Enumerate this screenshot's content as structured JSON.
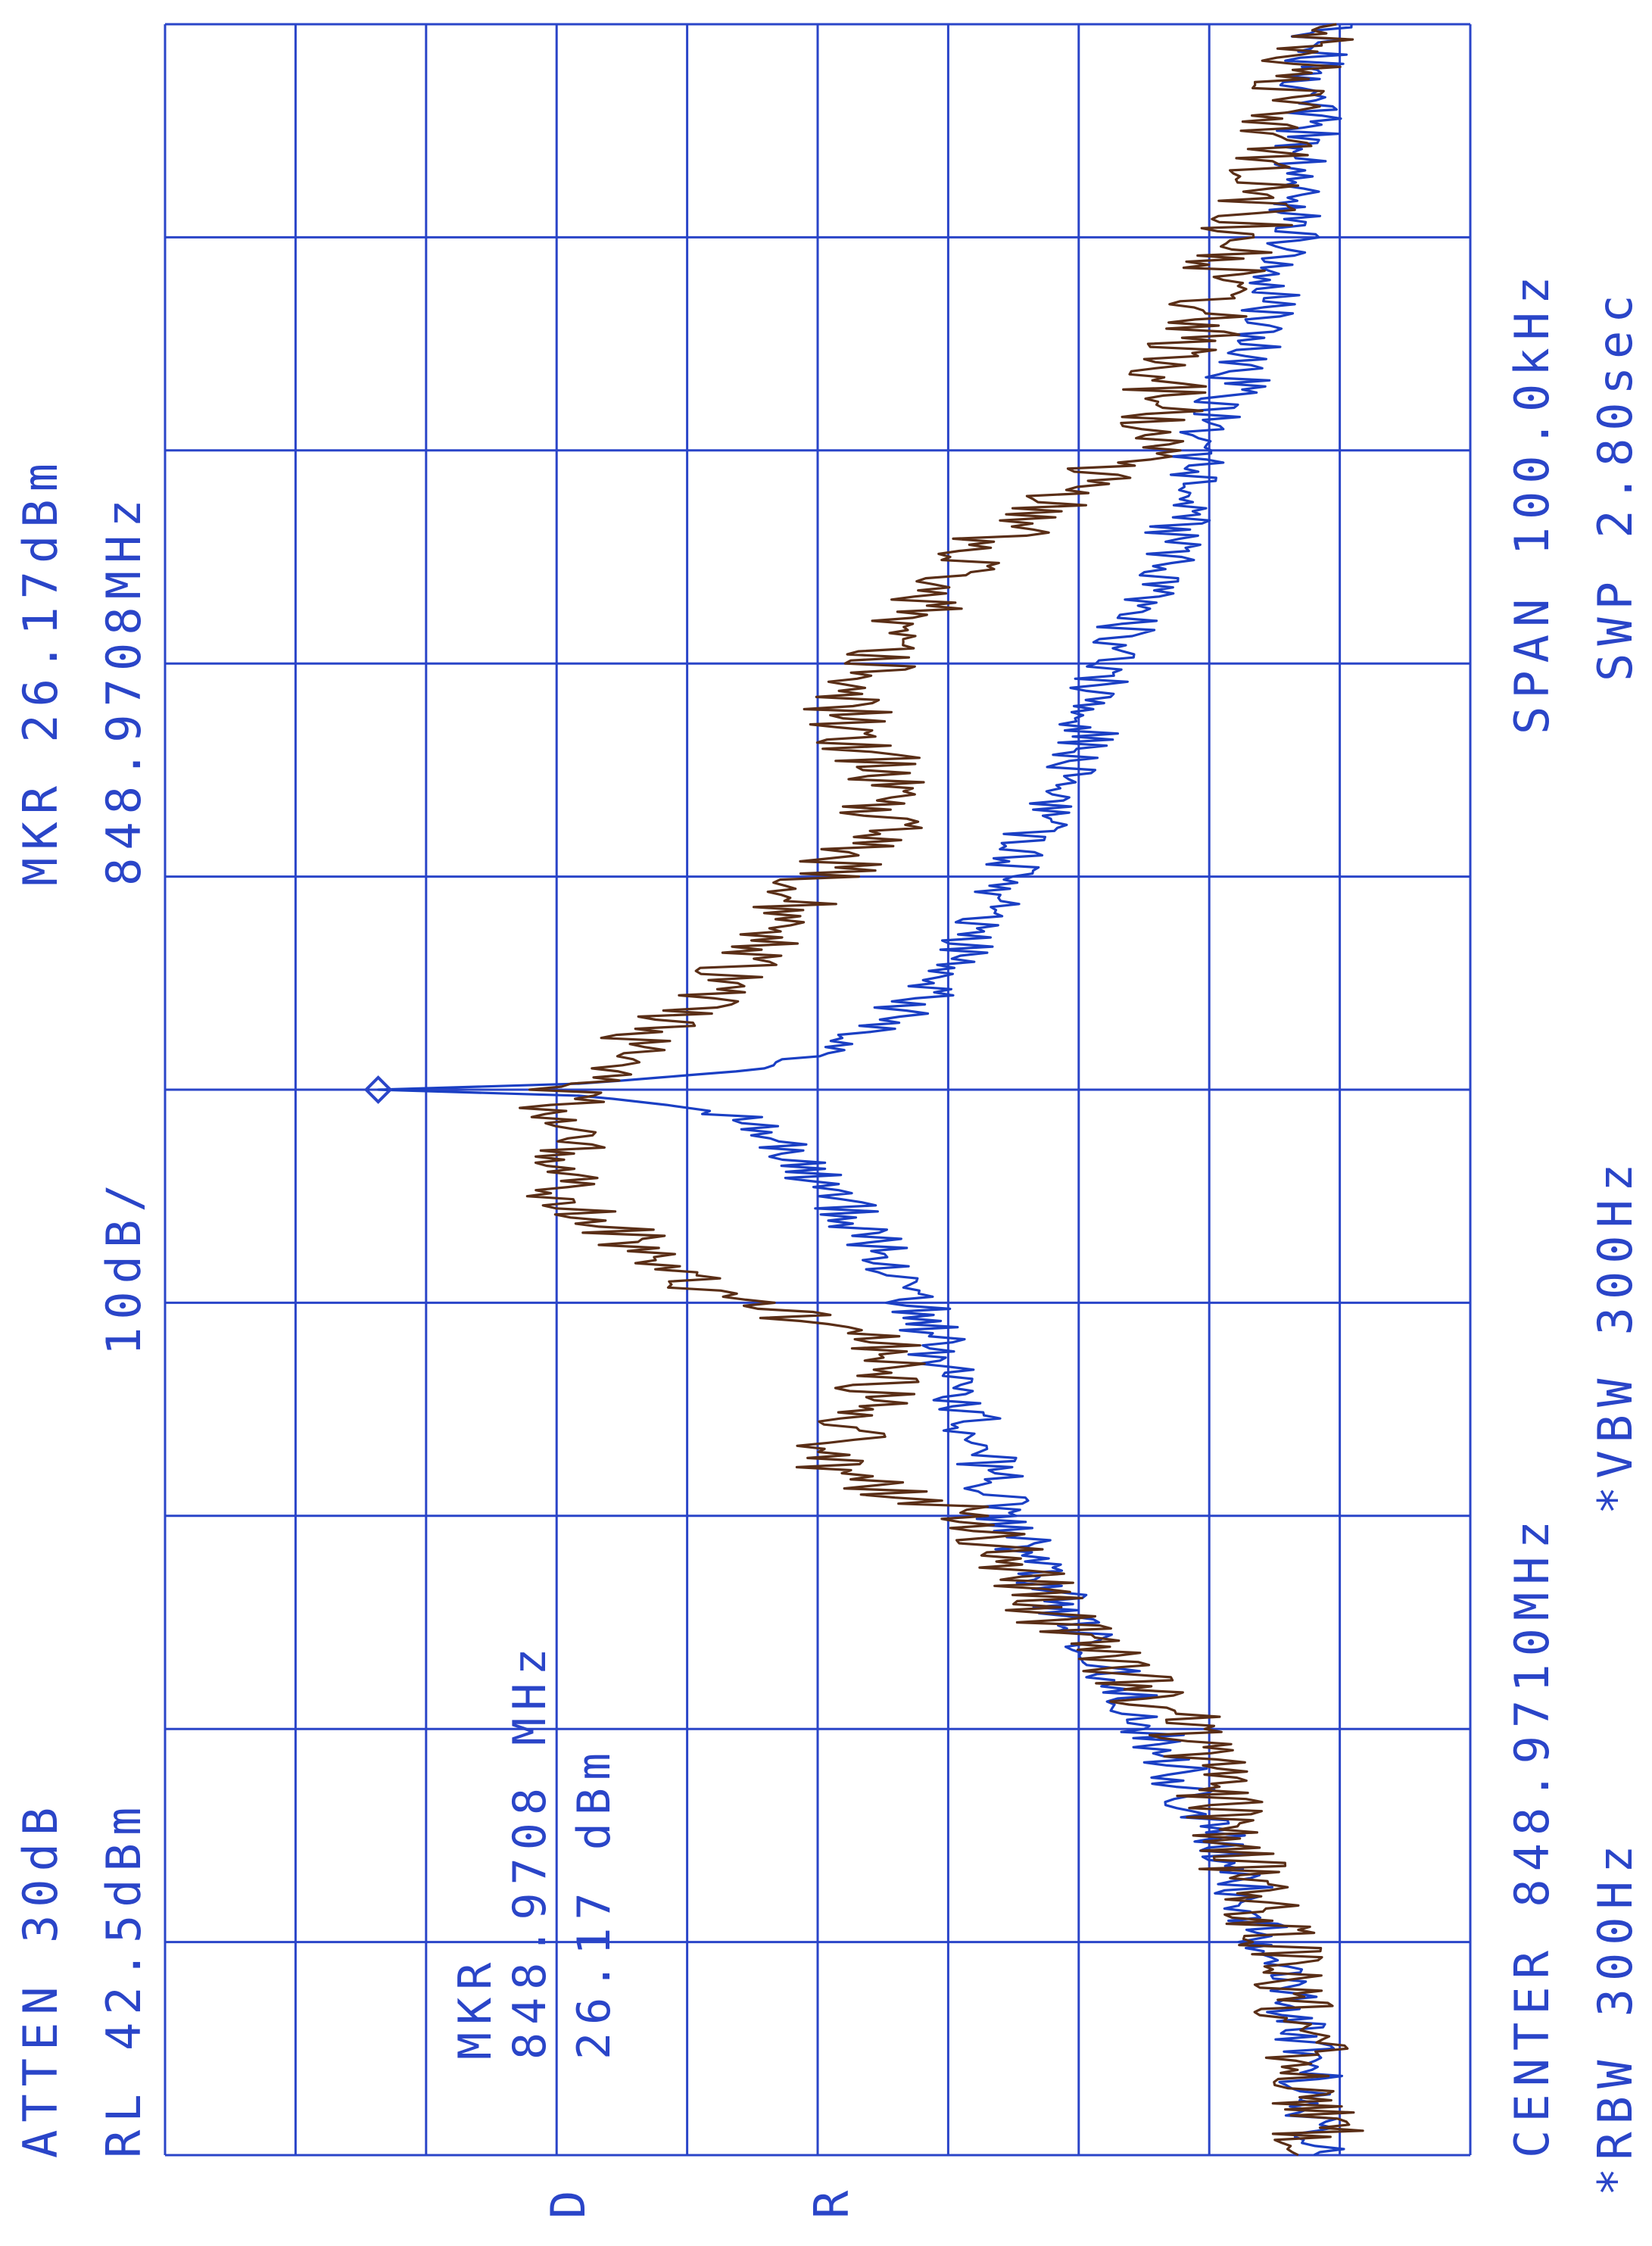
{
  "colors": {
    "annotation": "#2a45c8",
    "grid": "#2a45c8",
    "trace_blue": "#1a3fc4",
    "trace_brown": "#5a2e16"
  },
  "header": {
    "mkr_freq_label": "MKR 26.17dBm",
    "mkr_freq_value": "848.9708MHz",
    "scale": "10dB/",
    "atten": "ATTEN 30dB",
    "ref_level": "RL 42.5dBm"
  },
  "marker_box": {
    "line1": "MKR",
    "line2": "848.9708 MHz",
    "line3": "26.17 dBm"
  },
  "footer": {
    "center": "CENTER 848.9710MHz",
    "span": "SPAN 100.0kHz",
    "rbw": "*RBW 300Hz",
    "vbw": "*VBW 300Hz",
    "swp": "SWP 2.80sec"
  },
  "trace_flags": {
    "d": "D",
    "r": "R"
  },
  "chart_data": {
    "type": "line",
    "orientation": "rotated 90 degrees clockwise (frequency runs top to bottom, amplitude increases to the left)",
    "x_unit": "kHz offset from center",
    "xlim": [
      -50,
      50
    ],
    "y_unit": "dBm",
    "ylim": [
      -57.5,
      42.5
    ],
    "grid": true,
    "marker": {
      "x": 0,
      "y": 26.17
    },
    "series": [
      {
        "id": "blue",
        "color": "#1a3fc4",
        "noise": 2.5,
        "x": [
          -50,
          -45,
          -40,
          -35,
          -30,
          -25,
          -20,
          -15,
          -10,
          -5,
          -2,
          -1,
          -0.3,
          0,
          0.3,
          1,
          2,
          5,
          10,
          15,
          20,
          25,
          30,
          35,
          40,
          45,
          50
        ],
        "y": [
          -46,
          -45,
          -44,
          -41,
          -37,
          -34,
          -30,
          -27,
          -22,
          -17,
          -10,
          -4,
          10,
          26.17,
          10,
          0,
          -3,
          -9,
          -15,
          -19,
          -22,
          -27,
          -33,
          -38,
          -42,
          -45,
          -46
        ]
      },
      {
        "id": "brown",
        "color": "#5a2e16",
        "noise": 3.5,
        "x": [
          -50,
          -45,
          -40,
          -35,
          -30,
          -25,
          -20,
          -17,
          -15,
          -12,
          -10,
          -5,
          0,
          5,
          8,
          10,
          12,
          15,
          18,
          20,
          25,
          30,
          35,
          40,
          45,
          50
        ],
        "y": [
          -46,
          -43,
          -40,
          -36,
          -32,
          -19,
          -12,
          -9,
          -13,
          -12,
          -8,
          0,
          12,
          12,
          5,
          -2,
          -13,
          -11,
          -8,
          -20,
          -26,
          -36,
          -39,
          -43,
          -45,
          -46
        ]
      }
    ]
  }
}
